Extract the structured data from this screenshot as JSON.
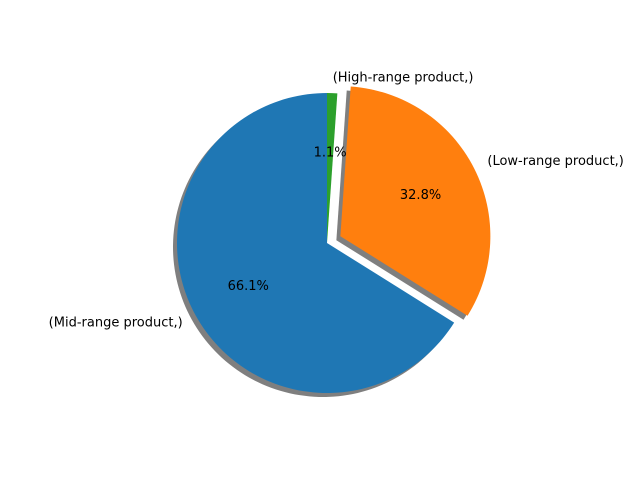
{
  "chart_data": {
    "type": "pie",
    "slices": [
      {
        "label": "(Mid-range product,)",
        "value": 66.1,
        "pct_label": "66.1%",
        "color": "#1f77b4",
        "exploded": false
      },
      {
        "label": "(Low-range product,)",
        "value": 32.8,
        "pct_label": "32.8%",
        "color": "#ff7f0e",
        "exploded": true
      },
      {
        "label": "(High-range product,)",
        "value": 1.1,
        "pct_label": "1.1%",
        "color": "#2ca02c",
        "exploded": false
      }
    ],
    "start_angle_deg": 90,
    "direction": "counterclockwise",
    "shadow": true,
    "legend": "none",
    "title": ""
  }
}
